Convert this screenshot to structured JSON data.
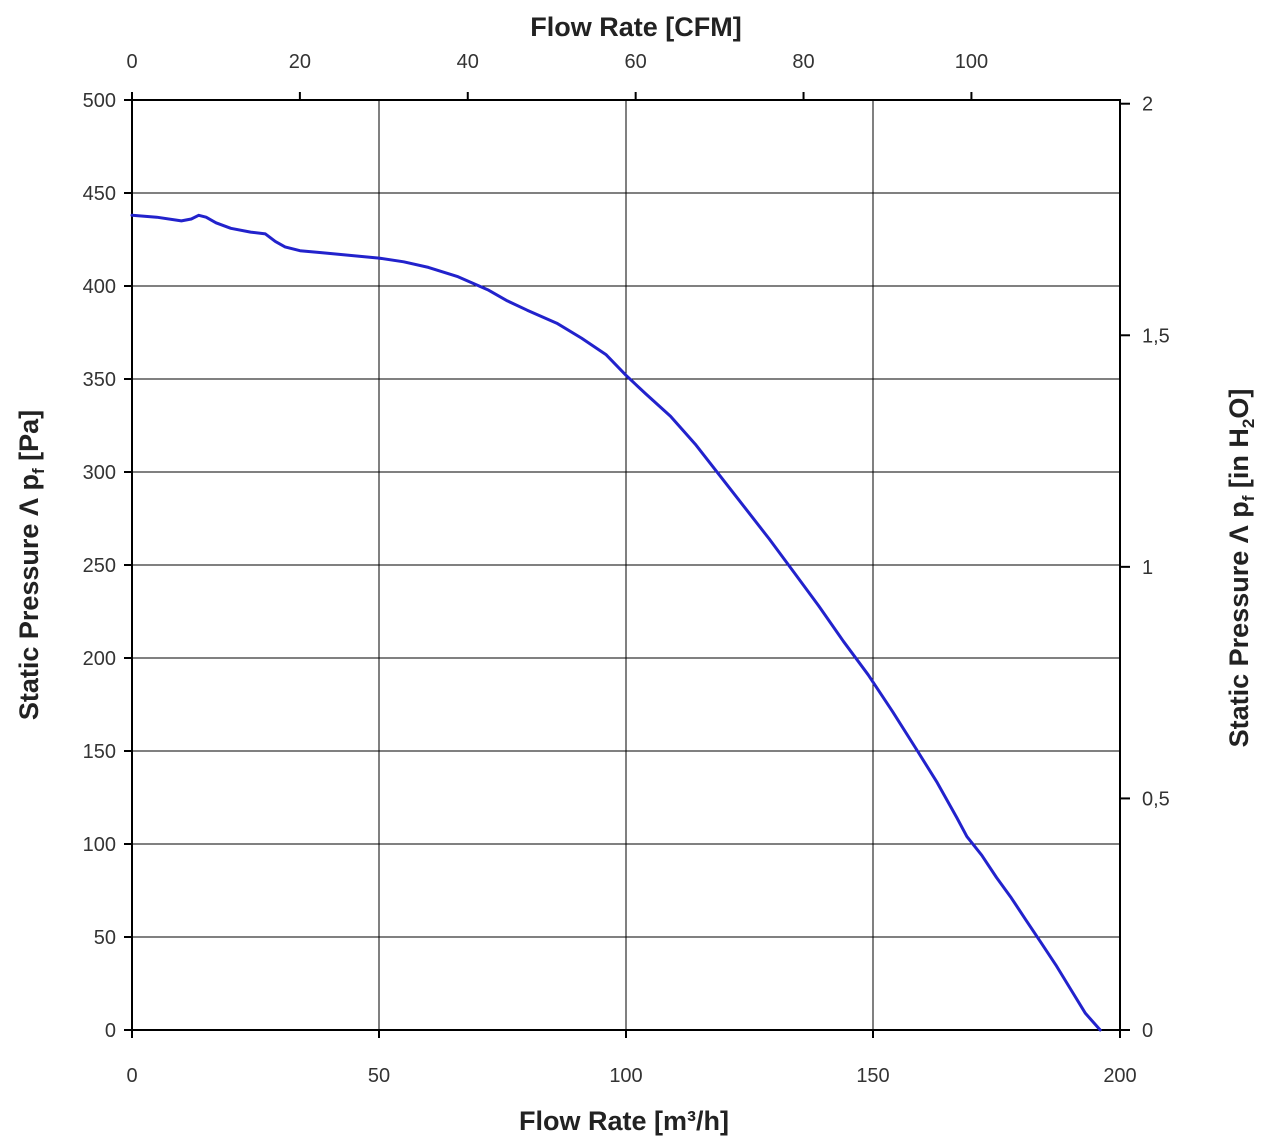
{
  "chart_data": {
    "type": "line",
    "title": "",
    "xlabel": "Flow Rate [m³/h]",
    "x2label": "Flow Rate [CFM]",
    "ylabel": "Static Pressure Λ pf [Pa]",
    "y2label": "Static Pressure Λ pf [in H2O]",
    "xlim": [
      0,
      200
    ],
    "ylim": [
      0,
      500
    ],
    "x2lim": [
      0,
      117.7
    ],
    "y2lim": [
      0,
      2.008
    ],
    "x_ticks": [
      0,
      50,
      100,
      150,
      200
    ],
    "y_ticks": [
      0,
      50,
      100,
      150,
      200,
      250,
      300,
      350,
      400,
      450,
      500
    ],
    "x2_ticks": [
      0,
      20,
      40,
      60,
      80,
      100
    ],
    "y2_ticks": [
      "0",
      "0,5",
      "1",
      "1,5",
      "2"
    ],
    "y2_tick_values": [
      0,
      0.5,
      1,
      1.5,
      2
    ],
    "grid": true,
    "line_color": "#2222cc",
    "series": [
      {
        "x": [
          0,
          5,
          10,
          12,
          13.5,
          15,
          17,
          20,
          24,
          27,
          29,
          31,
          34,
          38,
          42,
          46,
          50,
          55,
          60,
          66,
          72,
          76,
          80,
          86,
          91,
          96,
          100,
          104,
          109,
          114,
          119,
          124,
          129,
          134,
          139,
          144,
          149,
          154,
          159,
          163,
          167,
          169,
          172,
          175,
          178,
          181,
          184,
          187,
          190,
          193,
          196
        ],
        "y": [
          438,
          437,
          435,
          436,
          438,
          437,
          434,
          431,
          429,
          428,
          424,
          421,
          419,
          418,
          417,
          416,
          415,
          413,
          410,
          405,
          398,
          392,
          387,
          380,
          372,
          363,
          352,
          342,
          330,
          315,
          298,
          281,
          264,
          246,
          228,
          209,
          191,
          171,
          150,
          133,
          114,
          104,
          94,
          82,
          71,
          59,
          47,
          35,
          22,
          9,
          0
        ]
      }
    ]
  }
}
